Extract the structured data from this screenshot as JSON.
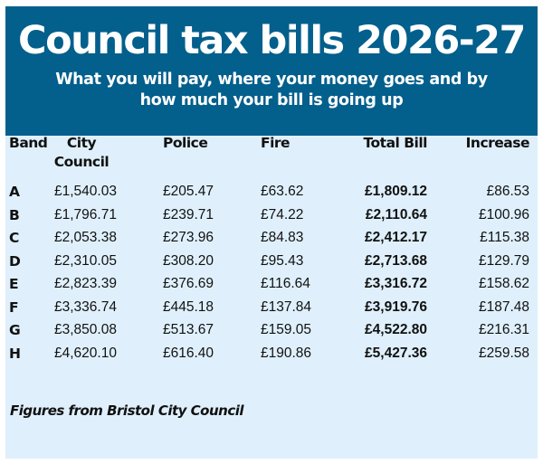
{
  "title": "Council tax bills 2026-27",
  "subtitle": "What you will pay, where your money goes and by how much your bill is going up",
  "colors": {
    "header_bg": "#035f8c",
    "panel_bg": "#dff0fc"
  },
  "table": {
    "columns": [
      "Band",
      "City Council",
      "Police",
      "Fire",
      "Total Bill",
      "Increase"
    ],
    "rows": [
      [
        "A",
        "£1,540.03",
        "£205.47",
        "£63.62",
        "£1,809.12",
        "£86.53"
      ],
      [
        "B",
        "£1,796.71",
        "£239.71",
        "£74.22",
        "£2,110.64",
        "£100.96"
      ],
      [
        "C",
        "£2,053.38",
        "£273.96",
        "£84.83",
        "£2,412.17",
        "£115.38"
      ],
      [
        "D",
        "£2,310.05",
        "£308.20",
        "£95.43",
        "£2,713.68",
        "£129.79"
      ],
      [
        "E",
        "£2,823.39",
        "£376.69",
        "£116.64",
        "£3,316.72",
        "£158.62"
      ],
      [
        "F",
        "£3,336.74",
        "£445.18",
        "£137.84",
        "£3,919.76",
        "£187.48"
      ],
      [
        "G",
        "£3,850.08",
        "£513.67",
        "£159.05",
        "£4,522.80",
        "£216.31"
      ],
      [
        "H",
        "£4,620.10",
        "£616.40",
        "£190.86",
        "£5,427.36",
        "£259.58"
      ]
    ]
  },
  "footer": "Figures from Bristol City Council"
}
